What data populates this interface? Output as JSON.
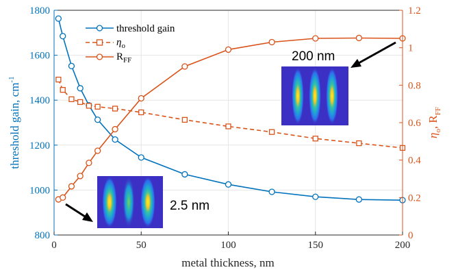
{
  "chart_data": {
    "type": "line",
    "xlabel": "metal thickness, nm",
    "ylabel_left": "threshold gain, cm",
    "ylabel_left_sup": "-1",
    "ylabel_right_eta": "η",
    "ylabel_right_eta_sub": "o",
    "ylabel_right_sep": ", R",
    "ylabel_right_ff_sub": "FF",
    "xlim": [
      0,
      200
    ],
    "ylim_left": [
      800,
      1800
    ],
    "ylim_right": [
      0,
      1.2
    ],
    "x_ticks": [
      "0",
      "50",
      "100",
      "150",
      "200"
    ],
    "y_left_ticks": [
      "800",
      "1000",
      "1200",
      "1400",
      "1600",
      "1800"
    ],
    "y_right_ticks": [
      "0",
      "0.2",
      "0.4",
      "0.6",
      "0.8",
      "1",
      "1.2"
    ],
    "grid": true,
    "legend_position": "top-left",
    "colors": {
      "left": "#0072BD",
      "right": "#D95319",
      "axis": "#262626",
      "grid": "#e6e6e6"
    },
    "series": [
      {
        "name": "threshold gain",
        "axis": "left",
        "style": "solid",
        "marker": "circle",
        "x": [
          2.5,
          5,
          10,
          15,
          20,
          25,
          35,
          50,
          75,
          100,
          125,
          150,
          175,
          200
        ],
        "y": [
          1763,
          1685,
          1552,
          1453,
          1377,
          1313,
          1225,
          1145,
          1070,
          1025,
          992,
          970,
          958,
          955
        ]
      },
      {
        "name_main": "η",
        "name_sub": "o",
        "axis": "right",
        "style": "dashed",
        "marker": "square",
        "x": [
          2.5,
          5,
          10,
          15,
          20,
          25,
          35,
          50,
          75,
          100,
          125,
          150,
          175,
          200
        ],
        "y": [
          0.83,
          0.775,
          0.725,
          0.71,
          0.69,
          0.685,
          0.675,
          0.655,
          0.615,
          0.58,
          0.55,
          0.515,
          0.49,
          0.465
        ]
      },
      {
        "name_main": "R",
        "name_sub": "FF",
        "axis": "right",
        "style": "solid",
        "marker": "circle",
        "x": [
          2.5,
          5,
          10,
          15,
          20,
          25,
          35,
          50,
          75,
          100,
          125,
          150,
          175,
          200
        ],
        "y": [
          0.19,
          0.2,
          0.26,
          0.315,
          0.385,
          0.45,
          0.565,
          0.73,
          0.9,
          0.99,
          1.03,
          1.05,
          1.052,
          1.05
        ]
      }
    ],
    "annotations": [
      {
        "text": "200 nm",
        "points_to": {
          "x": 190,
          "y_left": 1645
        }
      },
      {
        "text": "2.5 nm",
        "points_to": {
          "x": 2.5,
          "y_left": 960
        }
      }
    ]
  }
}
